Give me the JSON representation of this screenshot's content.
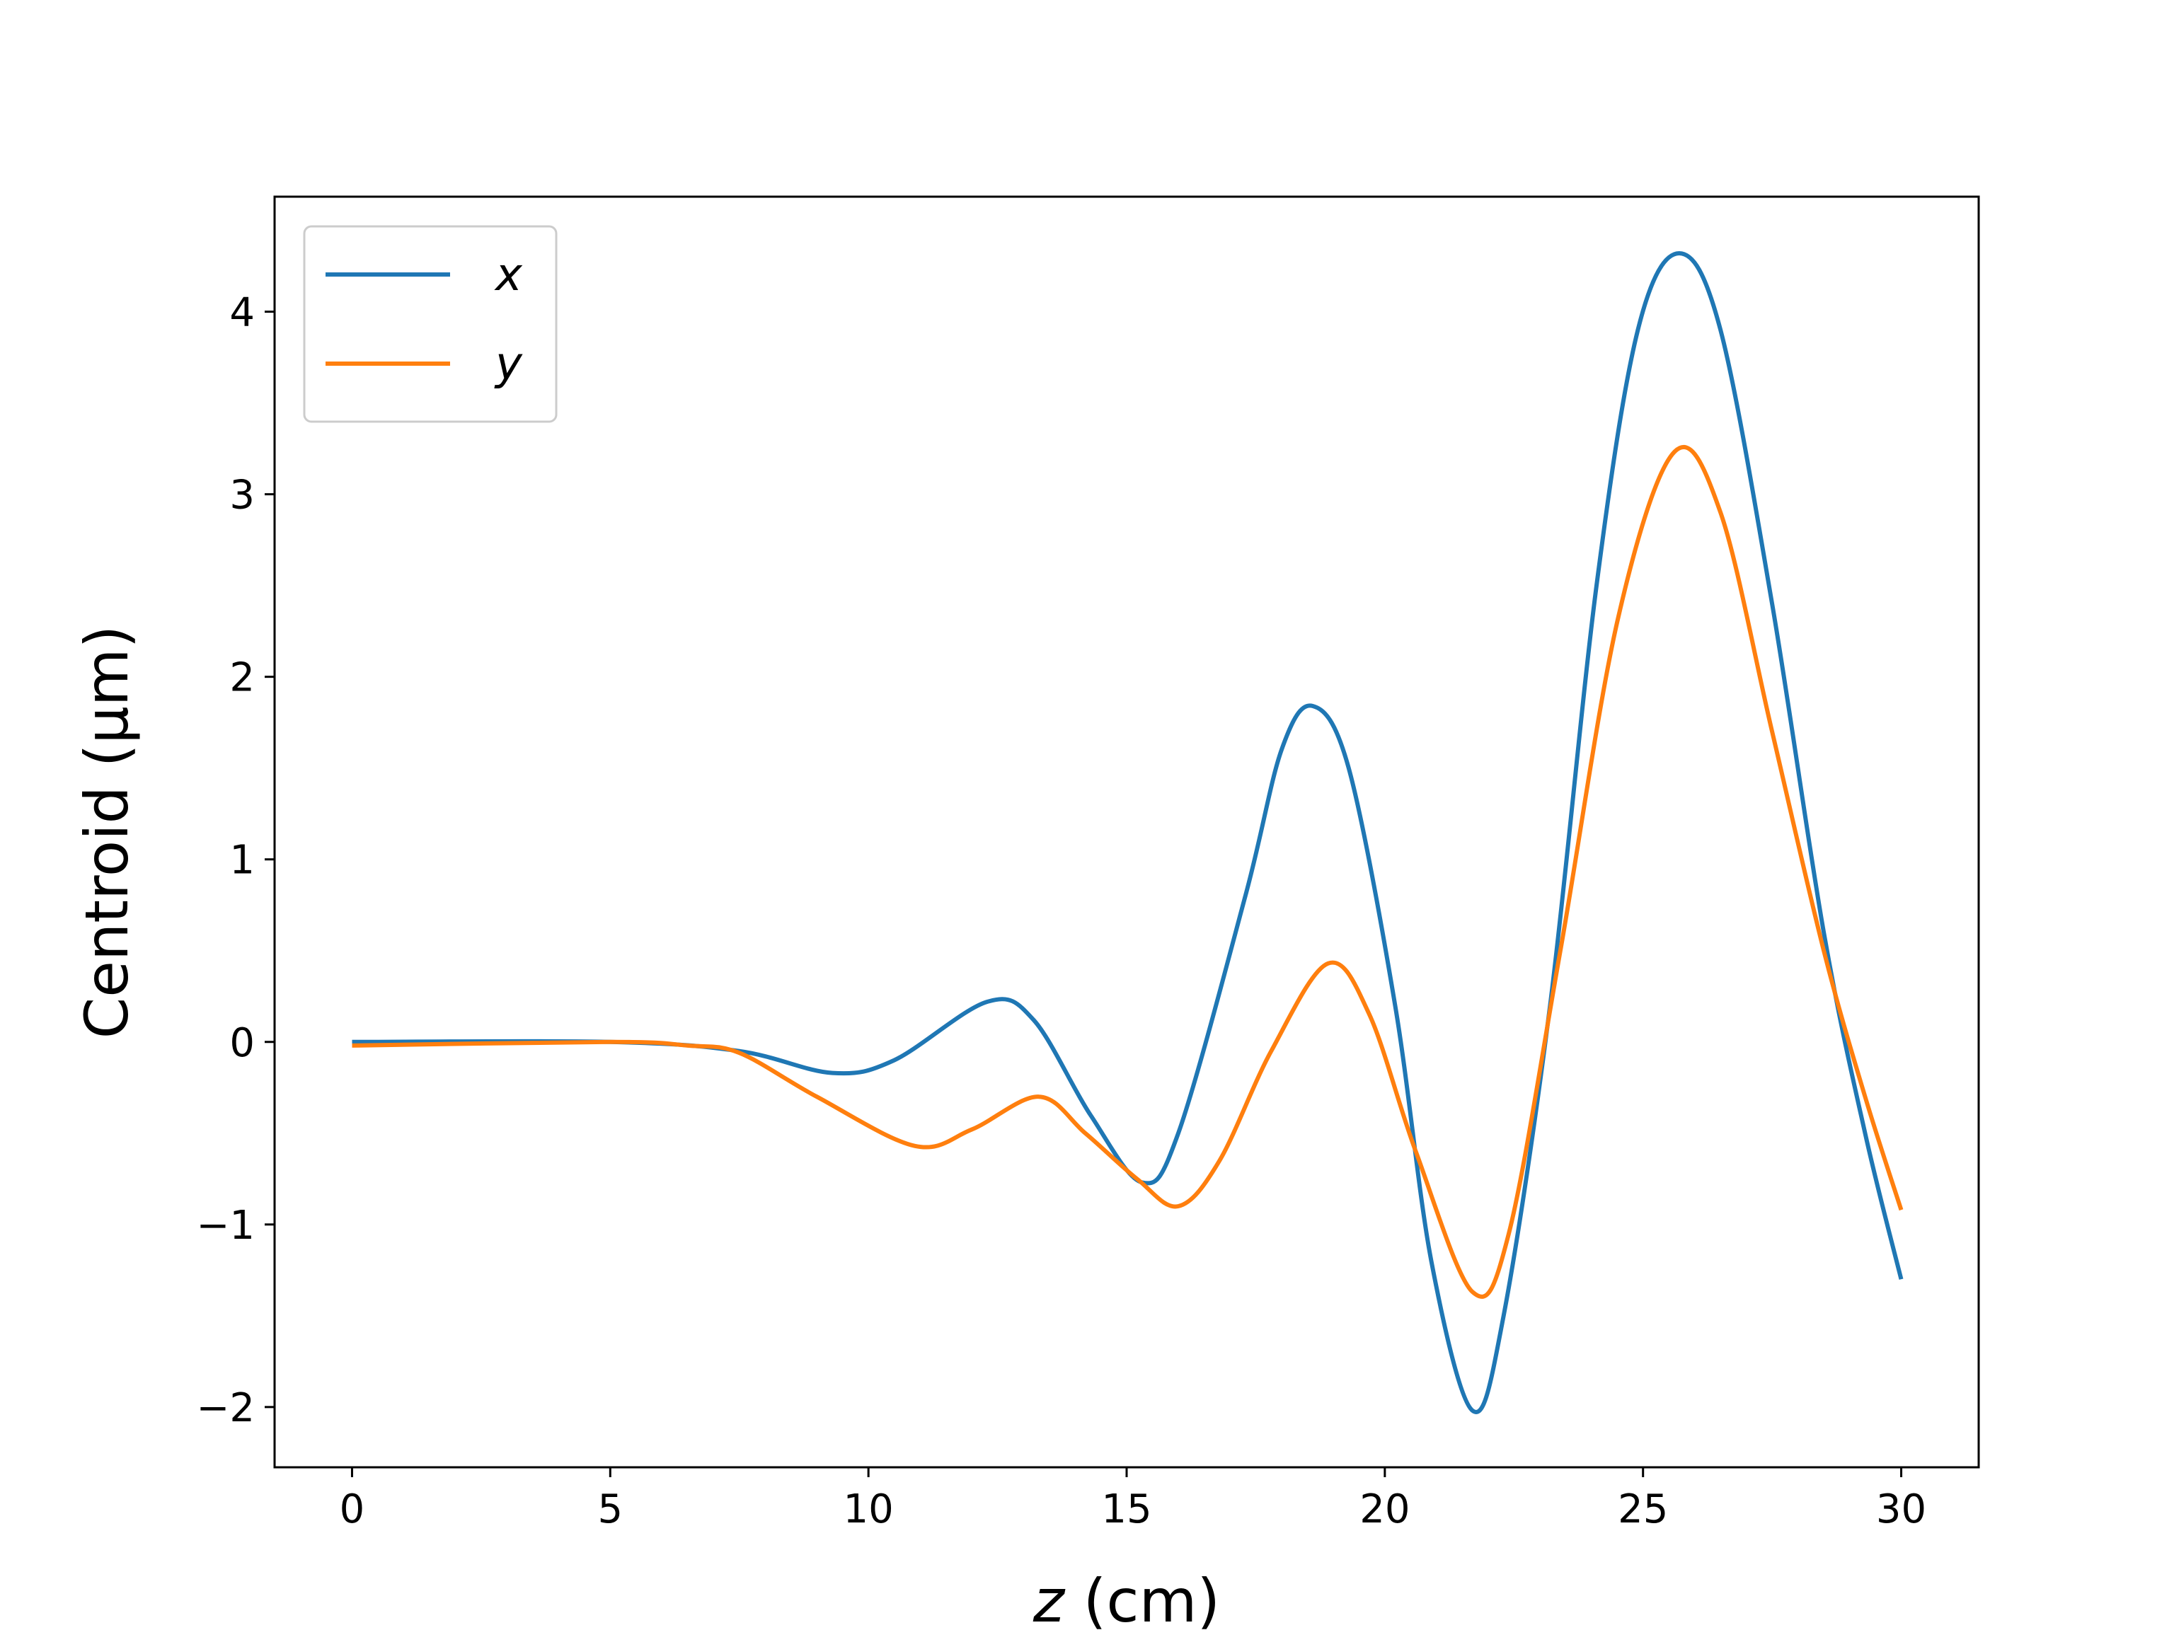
{
  "chart_data": {
    "type": "line",
    "xlabel_var": "z",
    "xlabel_unit": " (cm)",
    "ylabel": "Centroid (μm)",
    "xlim": [
      -1.5,
      31.5
    ],
    "ylim": [
      -2.33,
      4.63
    ],
    "xticks": [
      0,
      5,
      10,
      15,
      20,
      25,
      30
    ],
    "xtick_labels": [
      "0",
      "5",
      "10",
      "15",
      "20",
      "25",
      "30"
    ],
    "yticks": [
      -2,
      -1,
      0,
      1,
      2,
      3,
      4
    ],
    "ytick_labels": [
      "−2",
      "−1",
      "0",
      "1",
      "2",
      "3",
      "4"
    ],
    "grid": false,
    "legend_position": "top-left",
    "series": [
      {
        "name": "x",
        "color": "#1f77b4",
        "points": [
          [
            0,
            0.0
          ],
          [
            5,
            0.0
          ],
          [
            7.5,
            -0.05
          ],
          [
            9.3,
            -0.17
          ],
          [
            10.5,
            -0.1
          ],
          [
            12.3,
            0.22
          ],
          [
            13.2,
            0.12
          ],
          [
            14.3,
            -0.4
          ],
          [
            15.3,
            -0.77
          ],
          [
            16.0,
            -0.5
          ],
          [
            17.3,
            0.8
          ],
          [
            18.0,
            1.6
          ],
          [
            18.6,
            1.84
          ],
          [
            19.3,
            1.5
          ],
          [
            20.2,
            0.2
          ],
          [
            20.9,
            -1.2
          ],
          [
            21.7,
            -2.02
          ],
          [
            22.3,
            -1.5
          ],
          [
            23.2,
            0.2
          ],
          [
            24.1,
            2.5
          ],
          [
            24.9,
            3.9
          ],
          [
            25.7,
            4.32
          ],
          [
            26.5,
            3.9
          ],
          [
            27.5,
            2.4
          ],
          [
            28.5,
            0.6
          ],
          [
            29.3,
            -0.5
          ],
          [
            30.0,
            -1.3
          ]
        ]
      },
      {
        "name": "y",
        "color": "#ff7f0e",
        "points": [
          [
            0,
            -0.02
          ],
          [
            5,
            0.0
          ],
          [
            6.5,
            -0.02
          ],
          [
            7.5,
            -0.06
          ],
          [
            9.0,
            -0.3
          ],
          [
            10.9,
            -0.57
          ],
          [
            12.0,
            -0.48
          ],
          [
            13.3,
            -0.3
          ],
          [
            14.2,
            -0.5
          ],
          [
            15.2,
            -0.75
          ],
          [
            16.0,
            -0.9
          ],
          [
            16.8,
            -0.65
          ],
          [
            17.8,
            -0.05
          ],
          [
            18.9,
            0.43
          ],
          [
            19.7,
            0.15
          ],
          [
            20.6,
            -0.6
          ],
          [
            21.7,
            -1.37
          ],
          [
            22.4,
            -1.05
          ],
          [
            23.4,
            0.5
          ],
          [
            24.5,
            2.3
          ],
          [
            25.6,
            3.23
          ],
          [
            26.5,
            2.9
          ],
          [
            27.5,
            1.7
          ],
          [
            28.5,
            0.5
          ],
          [
            29.3,
            -0.3
          ],
          [
            30.0,
            -0.92
          ]
        ]
      }
    ]
  }
}
